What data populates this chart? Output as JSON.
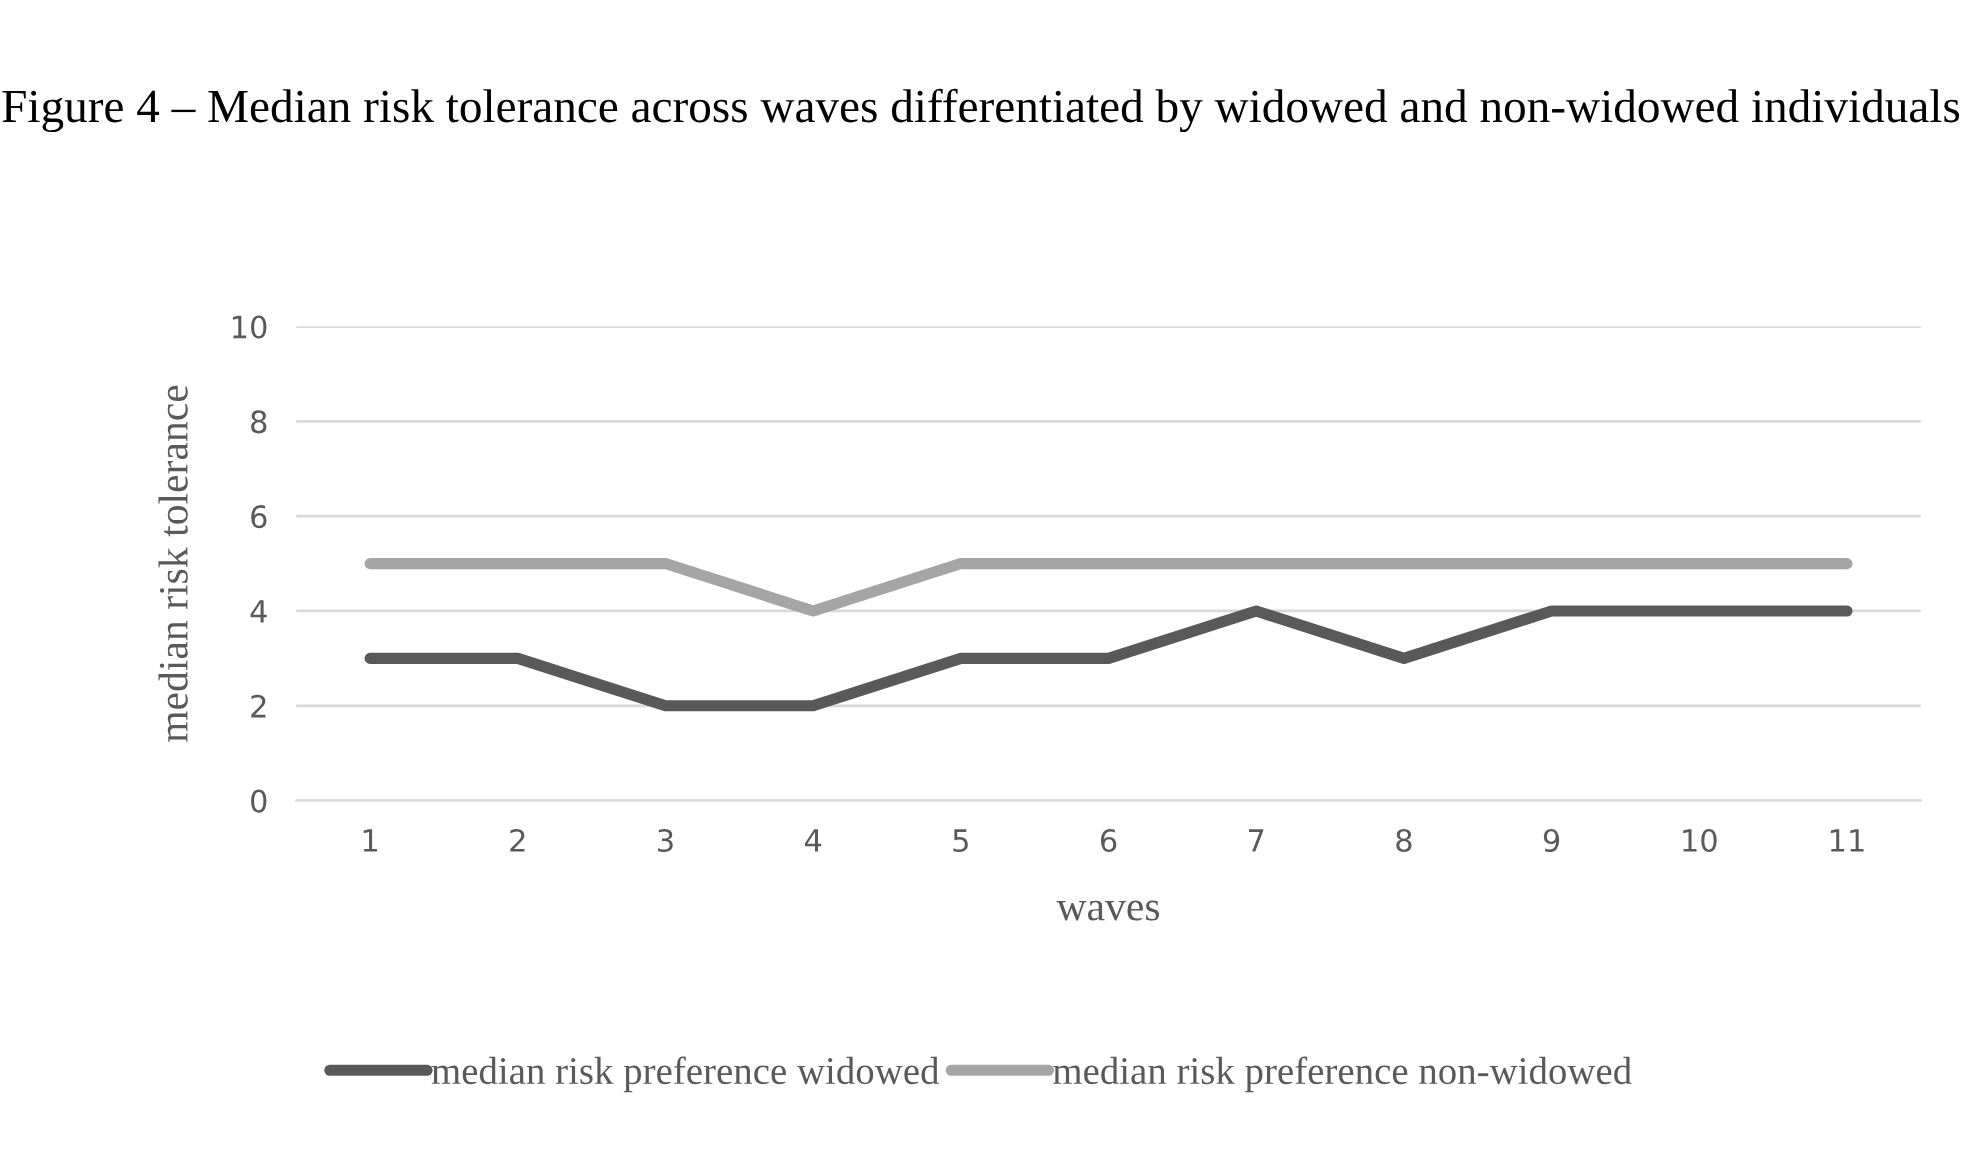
{
  "chart_data": {
    "type": "line",
    "title": "Figure 4 – Median risk tolerance across waves differentiated by widowed and non-widowed individuals",
    "xlabel": "waves",
    "ylabel": "median risk tolerance",
    "categories": [
      "1",
      "2",
      "3",
      "4",
      "5",
      "6",
      "7",
      "8",
      "9",
      "10",
      "11"
    ],
    "series": [
      {
        "name": "median risk preference widowed",
        "color": "#595959",
        "values": [
          3,
          3,
          2,
          2,
          3,
          3,
          4,
          3,
          4,
          4,
          4
        ]
      },
      {
        "name": "median risk preference non-widowed",
        "color": "#a5a5a5",
        "values": [
          5,
          5,
          5,
          4,
          5,
          5,
          5,
          5,
          5,
          5,
          5
        ]
      }
    ],
    "ylim": [
      0,
      10
    ],
    "yticks": [
      0,
      2,
      4,
      6,
      8,
      10
    ],
    "grid": "y",
    "legend": "bottom",
    "marker": "none",
    "line_style": "solid"
  }
}
